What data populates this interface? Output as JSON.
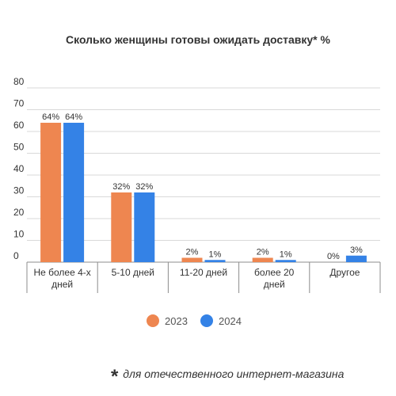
{
  "chart_data": {
    "type": "bar",
    "title": "Сколько женщины готовы ожидать доставку* %",
    "categories": [
      "Не более 4-х дней",
      "5-10 дней",
      "11-20 дней",
      "более 20 дней",
      "Другое"
    ],
    "series": [
      {
        "name": "2023",
        "values": [
          64,
          32,
          2,
          2,
          0
        ],
        "labels": [
          "64%",
          "32%",
          "2%",
          "2%",
          "0%"
        ],
        "color": "#EE8650"
      },
      {
        "name": "2024",
        "values": [
          64,
          32,
          1,
          1,
          3
        ],
        "labels": [
          "64%",
          "32%",
          "1%",
          "1%",
          "3%"
        ],
        "color": "#3482E6"
      }
    ],
    "ylim": [
      0,
      80
    ],
    "yticks": [
      0,
      10,
      20,
      30,
      40,
      50,
      60,
      70,
      80
    ],
    "grid": true,
    "legend_position": "bottom-center",
    "xlabel": "",
    "ylabel": ""
  },
  "footnote": {
    "star": "*",
    "text": "для отечественного интернет-магазина"
  }
}
